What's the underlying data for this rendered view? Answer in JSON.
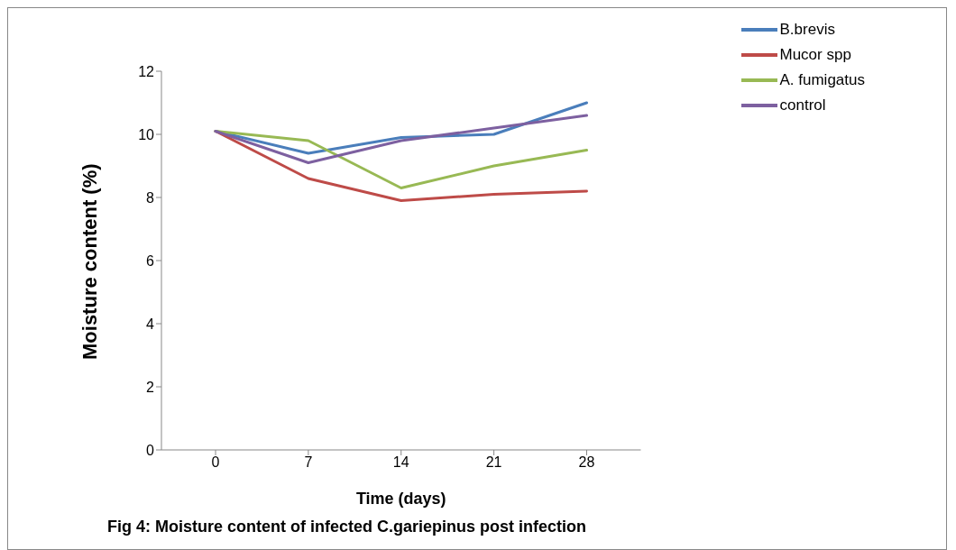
{
  "chart_data": {
    "type": "line",
    "xlabel": "Time (days)",
    "ylabel": "Moisture content (%)",
    "categories": [
      "0",
      "7",
      "14",
      "21",
      "28"
    ],
    "series": [
      {
        "name": "B.brevis",
        "color": "#4a7ebb",
        "values": [
          10.1,
          9.4,
          9.9,
          10.0,
          11.0
        ]
      },
      {
        "name": "Mucor spp",
        "color": "#be4b48",
        "values": [
          10.1,
          8.6,
          7.9,
          8.1,
          8.2
        ]
      },
      {
        "name": "A. fumigatus",
        "color": "#98b954",
        "values": [
          10.1,
          9.8,
          8.3,
          9.0,
          9.5
        ]
      },
      {
        "name": "control",
        "color": "#7d60a0",
        "values": [
          10.1,
          9.1,
          9.8,
          10.2,
          10.6
        ]
      }
    ],
    "ylim": [
      0,
      12
    ],
    "yticks": [
      0,
      2,
      4,
      6,
      8,
      10,
      12
    ],
    "grid": false,
    "legend": "top right",
    "marker": "none",
    "line_style": "solid",
    "annotations": [
      "Fig 4: Moisture content of infected C.gariepinus post infection"
    ]
  }
}
